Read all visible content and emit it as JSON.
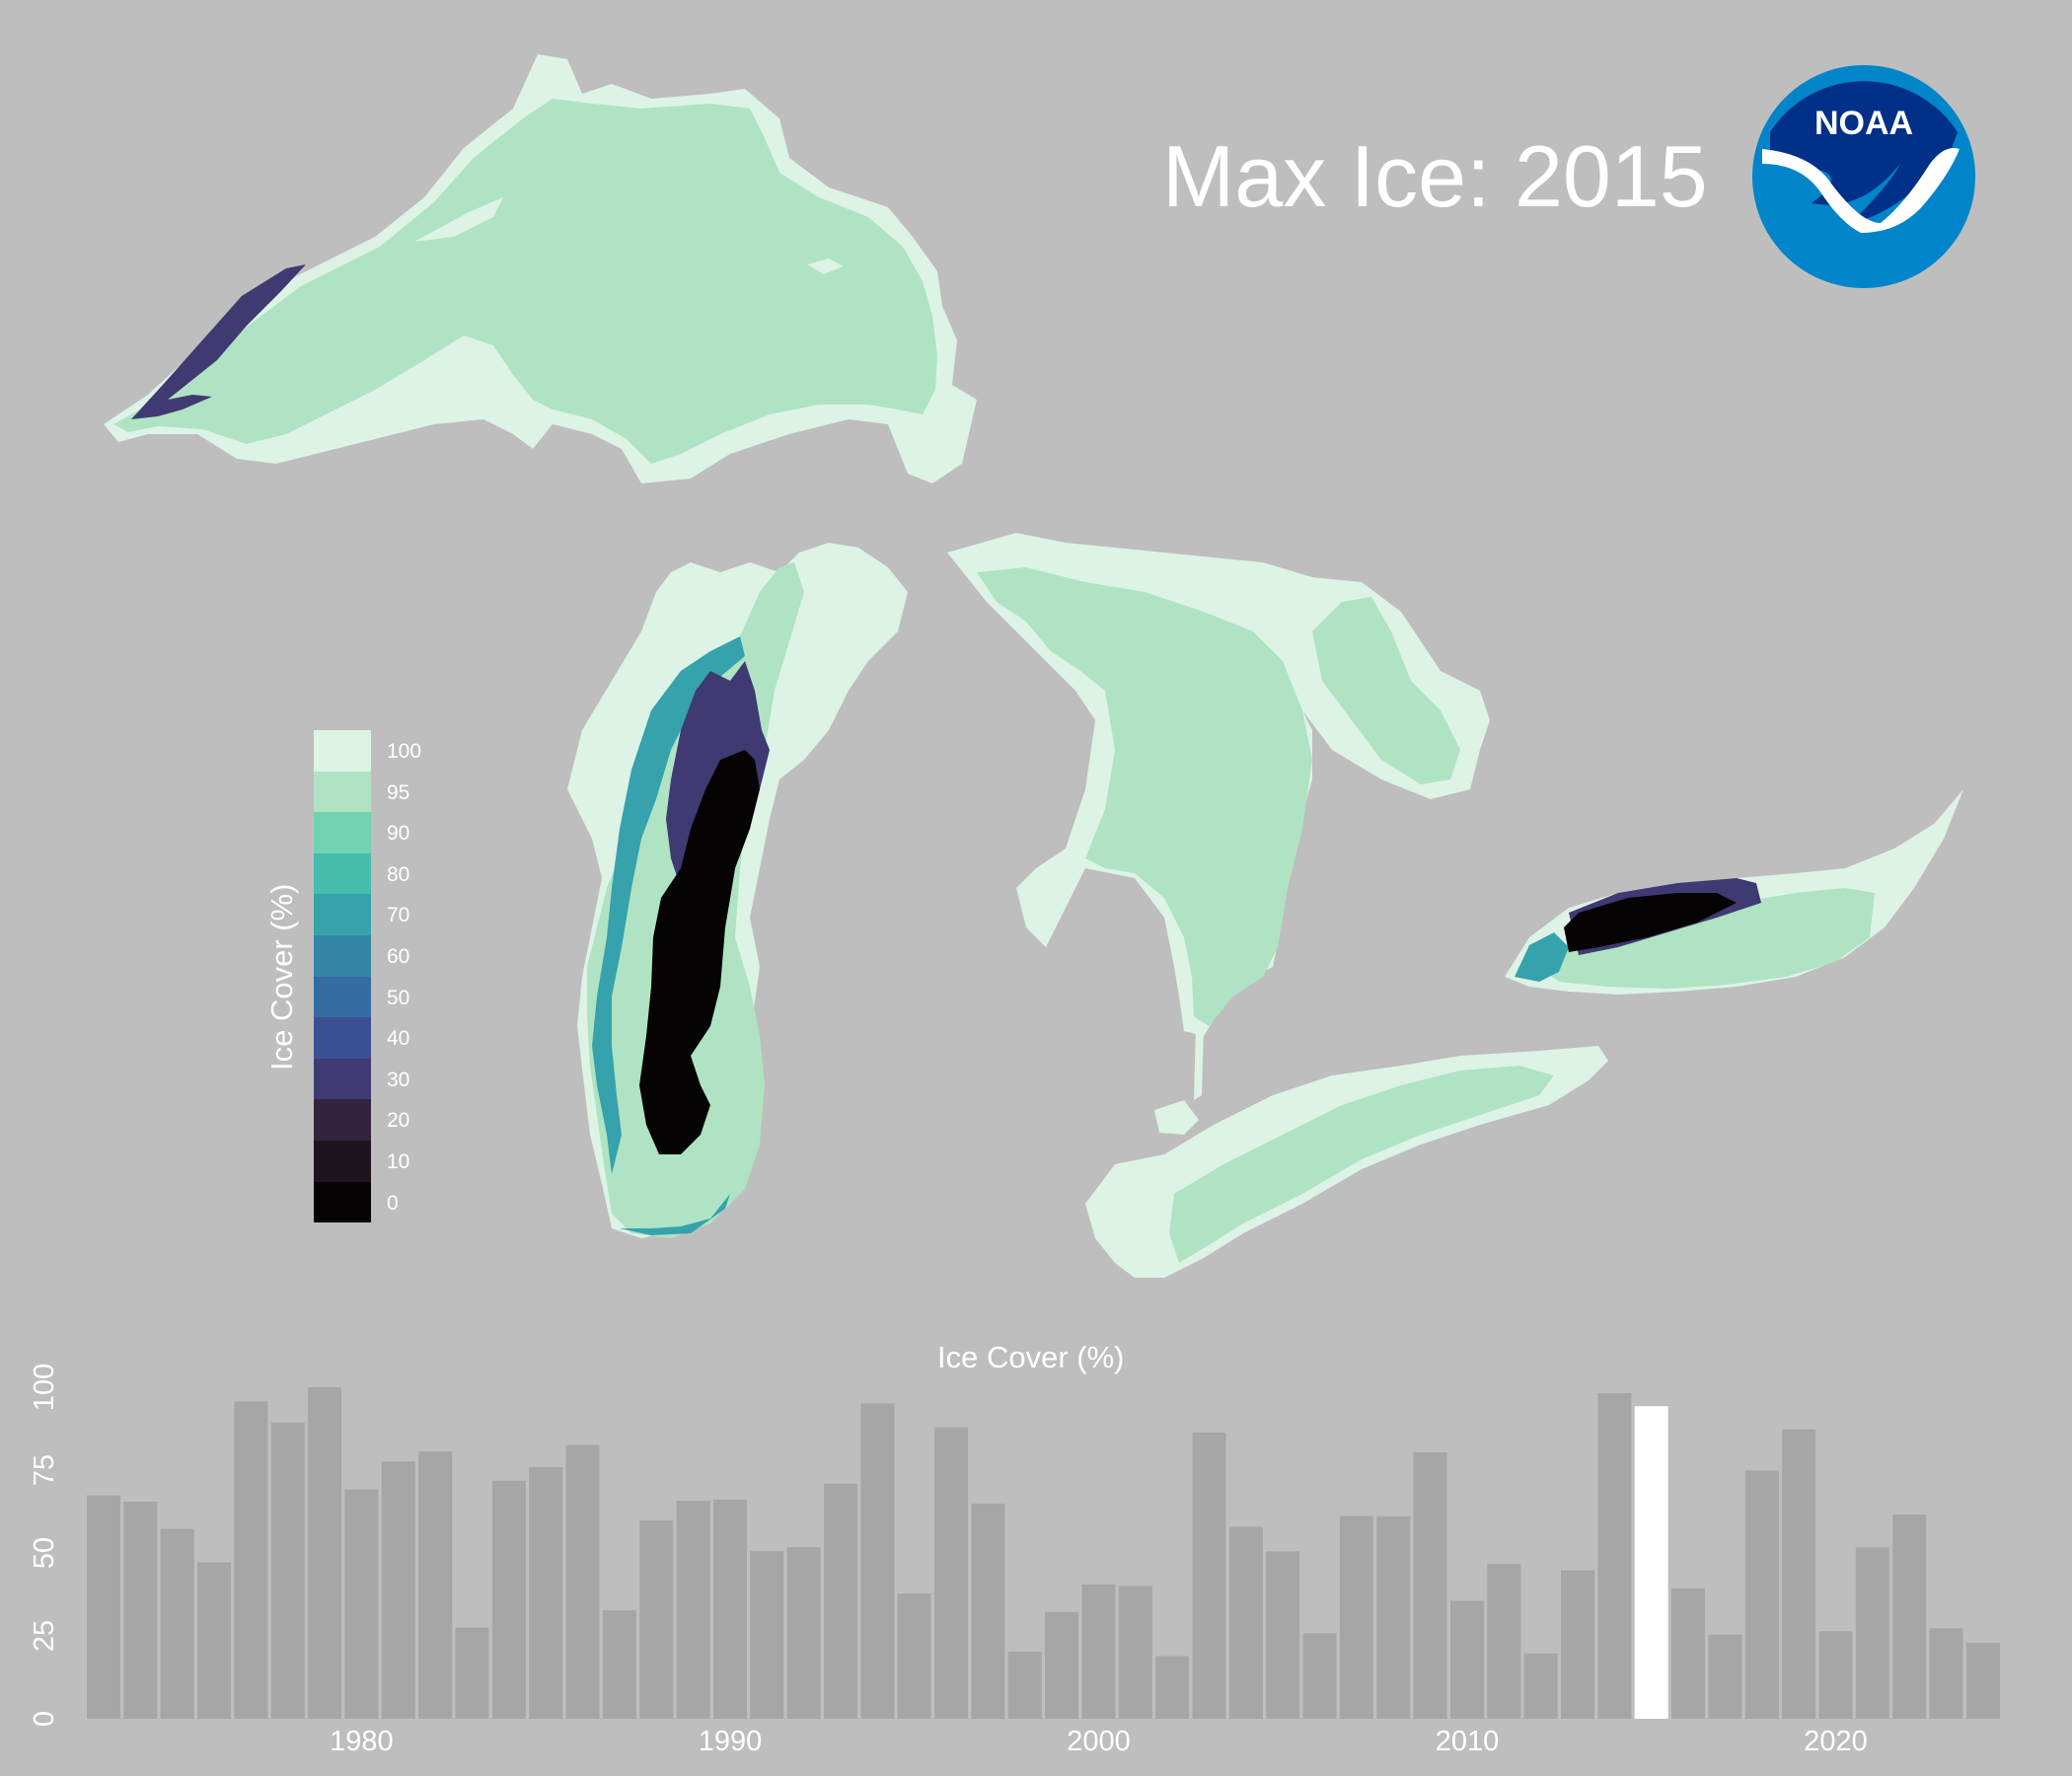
{
  "map": {
    "title": "Max Ice: 2015",
    "logo_text": "NOAA",
    "colors": {
      "background": "#bebebe",
      "c100": "#dcf3e6",
      "c95": "#afe3c3",
      "c90": "#72d1b0",
      "c80": "#45bcae",
      "c70": "#36a2ab",
      "c60": "#3486a6",
      "c50": "#346ca1",
      "c40": "#3b5092",
      "c30": "#3f3a72",
      "c20": "#32243f",
      "c10": "#1e141d",
      "c0": "#050304",
      "logo_outer": "#0085ca",
      "logo_inner": "#003087"
    }
  },
  "legend": {
    "title": "Ice Cover (%)",
    "entries": [
      {
        "label": "100",
        "color": "#dcf3e6"
      },
      {
        "label": "95",
        "color": "#afe3c3"
      },
      {
        "label": "90",
        "color": "#72d1b0"
      },
      {
        "label": "80",
        "color": "#45bcae"
      },
      {
        "label": "70",
        "color": "#36a2ab"
      },
      {
        "label": "60",
        "color": "#3486a6"
      },
      {
        "label": "50",
        "color": "#346ca1"
      },
      {
        "label": "40",
        "color": "#3b5092"
      },
      {
        "label": "30",
        "color": "#3f3a72"
      },
      {
        "label": "20",
        "color": "#32243f"
      },
      {
        "label": "10",
        "color": "#1e141d"
      },
      {
        "label": "0",
        "color": "#050304"
      }
    ]
  },
  "chart_data": {
    "type": "bar",
    "title": "Ice Cover (%)",
    "xlabel": "",
    "ylabel": "",
    "x": [
      1973,
      1974,
      1975,
      1976,
      1977,
      1978,
      1979,
      1980,
      1981,
      1982,
      1983,
      1984,
      1985,
      1986,
      1987,
      1988,
      1989,
      1990,
      1991,
      1992,
      1993,
      1994,
      1995,
      1996,
      1997,
      1998,
      1999,
      2000,
      2001,
      2002,
      2003,
      2004,
      2005,
      2006,
      2007,
      2008,
      2009,
      2010,
      2011,
      2012,
      2013,
      2014,
      2015,
      2016,
      2017,
      2018,
      2019,
      2020,
      2021,
      2022,
      2023,
      2024
    ],
    "values": [
      67.4,
      65.5,
      57.3,
      47.2,
      95.7,
      89.4,
      100,
      69.2,
      77.6,
      80.6,
      27.5,
      71.8,
      75.9,
      82.6,
      32.7,
      59.8,
      65.7,
      66.1,
      50.6,
      51.8,
      70.9,
      95.1,
      37.8,
      87.9,
      64.9,
      20.2,
      32.2,
      40.5,
      40.1,
      18.9,
      86.3,
      57.9,
      50.5,
      25.8,
      61.2,
      61.1,
      80.4,
      35.6,
      46.7,
      19.7,
      44.8,
      98.2,
      94.3,
      39.3,
      25.4,
      74.9,
      87.3,
      26.4,
      51.7,
      61.6,
      27.3,
      22.9
    ],
    "highlight": 2015,
    "ylim": [
      0,
      100
    ],
    "yticks": [
      0,
      25,
      50,
      75,
      100
    ],
    "xticks": [
      1980,
      1990,
      2000,
      2010,
      2020
    ],
    "colors": {
      "bar": "#a6a6a6",
      "highlight": "#ffffff",
      "tick_label": "#ffffff"
    }
  }
}
